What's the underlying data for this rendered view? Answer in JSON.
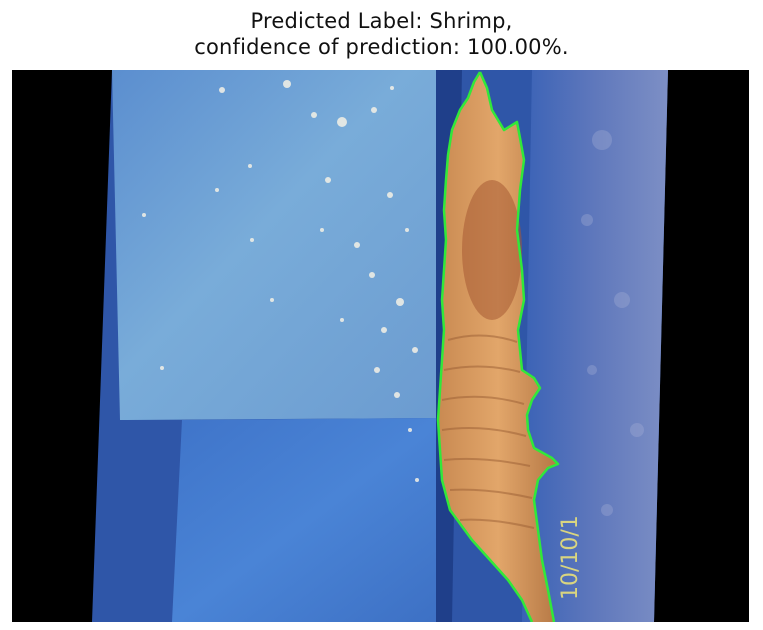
{
  "figure": {
    "title_line1": "Predicted Label: Shrimp,",
    "title_line2": "confidence of prediction: 100.00%."
  },
  "image": {
    "subject": "shrimp on blue surface",
    "outline_color": "#31e83a",
    "handwritten_marking": "10/10/1"
  }
}
